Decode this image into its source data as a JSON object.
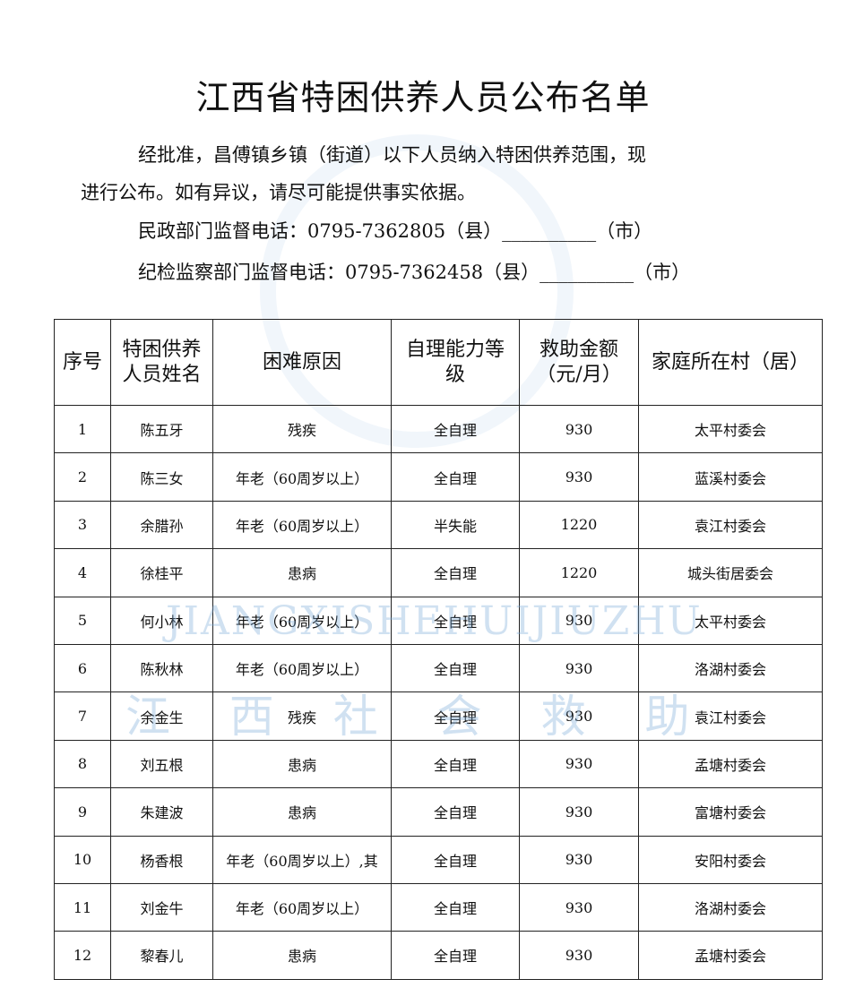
{
  "title": "江西省特困供养人员公布名单",
  "intro": {
    "line1": "经批准，昌傅镇乡镇（街道）以下人员纳入特困供养范围，现",
    "line2": "进行公布。如有异议，请尽可能提供事实依据。",
    "civil_phone": "民政部门监督电话：0795-7362805（县）__________（市）",
    "discipline_phone": "纪检监察部门监督电话：0795-7362458（县）__________（市）"
  },
  "table": {
    "headers": [
      "序号",
      "特困供养人员姓名",
      "困难原因",
      "自理能力等级",
      "救助金额（元/月）",
      "家庭所在村（居）"
    ],
    "rows": [
      [
        "1",
        "陈五牙",
        "残疾",
        "全自理",
        "930",
        "太平村委会"
      ],
      [
        "2",
        "陈三女",
        "年老（60周岁以上）",
        "全自理",
        "930",
        "蓝溪村委会"
      ],
      [
        "3",
        "余腊孙",
        "年老（60周岁以上）",
        "半失能",
        "1220",
        "袁江村委会"
      ],
      [
        "4",
        "徐桂平",
        "患病",
        "全自理",
        "1220",
        "城头街居委会"
      ],
      [
        "5",
        "何小林",
        "年老（60周岁以上）",
        "全自理",
        "930",
        "太平村委会"
      ],
      [
        "6",
        "陈秋林",
        "年老（60周岁以上）",
        "全自理",
        "930",
        "洛湖村委会"
      ],
      [
        "7",
        "余金生",
        "残疾",
        "全自理",
        "930",
        "袁江村委会"
      ],
      [
        "8",
        "刘五根",
        "患病",
        "全自理",
        "930",
        "孟塘村委会"
      ],
      [
        "9",
        "朱建波",
        "患病",
        "全自理",
        "930",
        "富塘村委会"
      ],
      [
        "10",
        "杨香根",
        "年老（60周岁以上）,其",
        "全自理",
        "930",
        "安阳村委会"
      ],
      [
        "11",
        "刘金牛",
        "年老（60周岁以上）",
        "全自理",
        "930",
        "洛湖村委会"
      ],
      [
        "12",
        "黎春儿",
        "患病",
        "全自理",
        "930",
        "孟塘村委会"
      ]
    ]
  },
  "watermark": {
    "pinyin": "JIANGXISHEHUIJIUZHU",
    "chinese": "江 西 社 会 救 助"
  }
}
